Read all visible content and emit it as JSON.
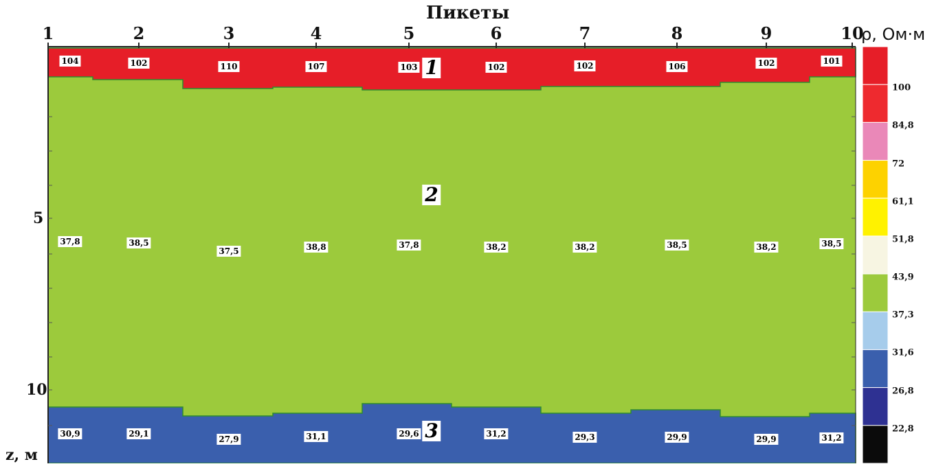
{
  "title": "Пикеты",
  "z_axis_label": "z, м",
  "unit_label": "ρ, Ом·м",
  "pickets": [
    "1",
    "2",
    "3",
    "4",
    "5",
    "6",
    "7",
    "8",
    "9",
    "10"
  ],
  "depth_ticks": [
    "5",
    "10"
  ],
  "layer_numbers": [
    "1",
    "2",
    "3"
  ],
  "layers": [
    {
      "name": "1",
      "color": "#e61e28",
      "values": [
        "104",
        "102",
        "110",
        "107",
        "103",
        "102",
        "102",
        "106",
        "102",
        "101"
      ]
    },
    {
      "name": "2",
      "color": "#9cca3c",
      "values": [
        "37,8",
        "38,5",
        "37,5",
        "38,8",
        "37,8",
        "38,2",
        "38,2",
        "38,5",
        "38,2",
        "38,5"
      ]
    },
    {
      "name": "3",
      "color": "#3a5fad",
      "values": [
        "30,9",
        "29,1",
        "27,9",
        "31,1",
        "29,6",
        "31,2",
        "29,3",
        "29,9",
        "29,9",
        "31,2"
      ]
    }
  ],
  "colorbar": {
    "colors": [
      "#e61e28",
      "#ee2a2f",
      "#ea88b8",
      "#fdd200",
      "#fff200",
      "#f7f5e2",
      "#9cca3c",
      "#a6cceb",
      "#3a5fad",
      "#2e3192",
      "#0b0b0b"
    ],
    "labels": [
      "100",
      "84,8",
      "72",
      "61,1",
      "51,8",
      "43,9",
      "37,3",
      "31,6",
      "26,8",
      "22,8"
    ]
  }
}
